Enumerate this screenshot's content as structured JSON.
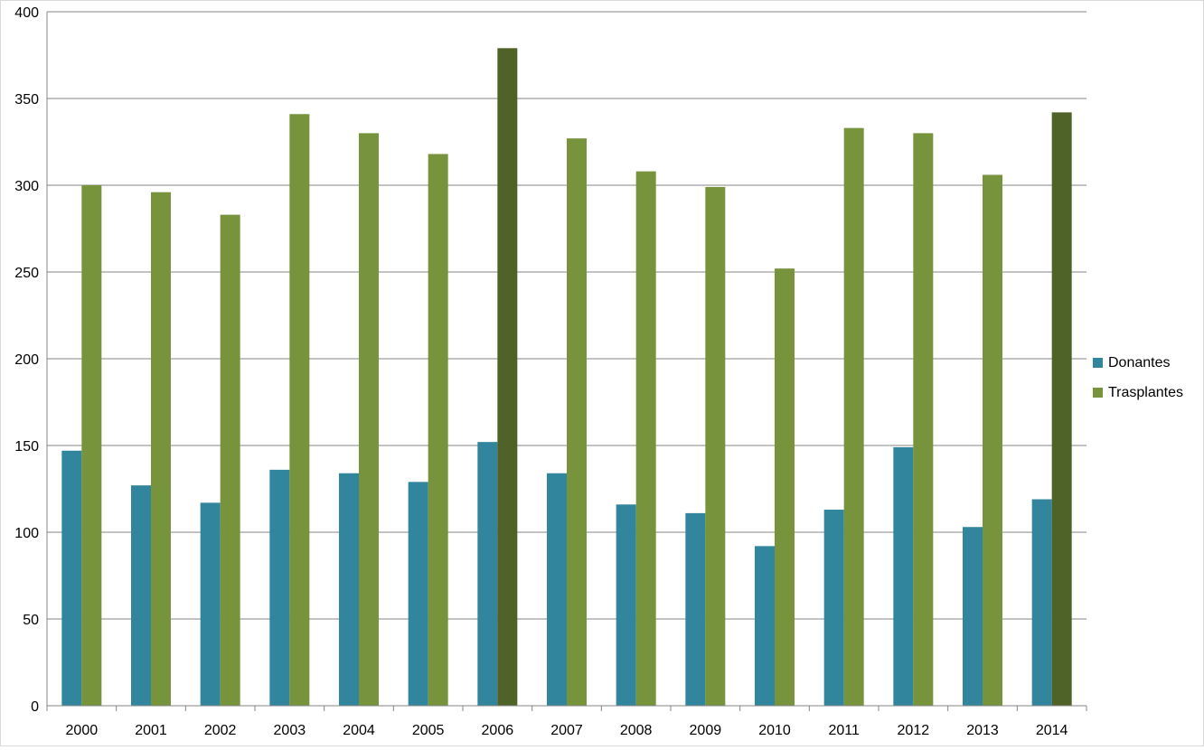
{
  "chart_data": {
    "type": "bar",
    "title": "",
    "xlabel": "",
    "ylabel": "",
    "ylim": [
      0,
      400
    ],
    "yticks": [
      0,
      50,
      100,
      150,
      200,
      250,
      300,
      350,
      400
    ],
    "grid": true,
    "legend_position": "right",
    "categories": [
      "2000",
      "2001",
      "2002",
      "2003",
      "2004",
      "2005",
      "2006",
      "2007",
      "2008",
      "2009",
      "2010",
      "2011",
      "2012",
      "2013",
      "2014"
    ],
    "series": [
      {
        "name": "Donantes",
        "color": "#31859c",
        "values": [
          147,
          127,
          117,
          136,
          134,
          129,
          152,
          134,
          116,
          111,
          92,
          113,
          149,
          103,
          119
        ]
      },
      {
        "name": "Trasplantes",
        "color": "#77933c",
        "highlight_color": "#4f6228",
        "highlight_categories": [
          "2006",
          "2014"
        ],
        "values": [
          300,
          296,
          283,
          341,
          330,
          318,
          379,
          327,
          308,
          299,
          252,
          333,
          330,
          306,
          342
        ]
      }
    ]
  }
}
